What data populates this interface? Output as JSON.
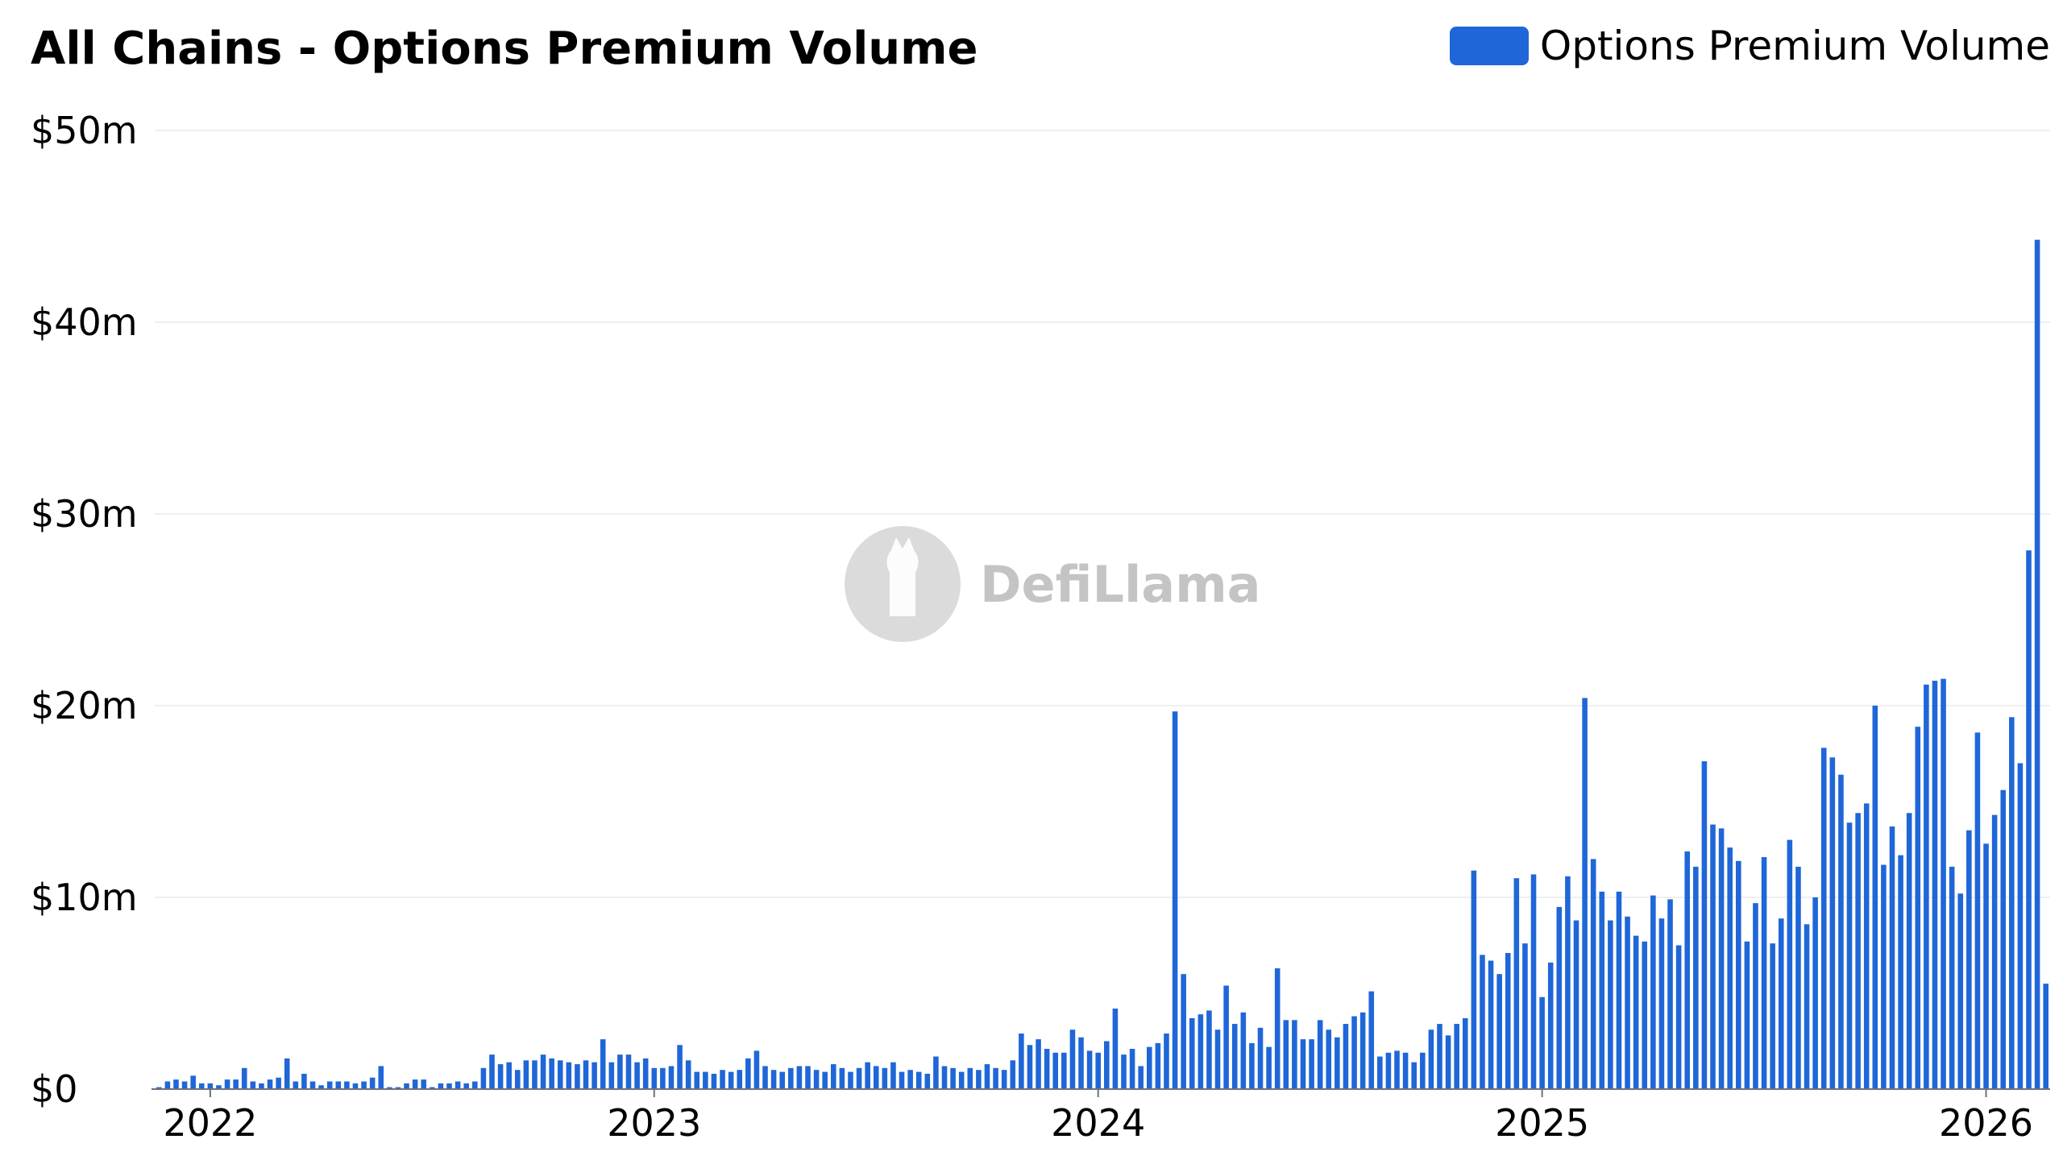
{
  "chart_data": {
    "type": "bar",
    "title": "All Chains - Options Premium Volume",
    "legend": {
      "label": "Options Premium Volume",
      "placement": "top-right"
    },
    "series_color": "#1f66d8",
    "grid": true,
    "watermark": "DefiLlama",
    "ylim": [
      0,
      50
    ],
    "y_ticks": [
      {
        "value": 0,
        "label": "$0"
      },
      {
        "value": 10,
        "label": "$10m"
      },
      {
        "value": 20,
        "label": "$20m"
      },
      {
        "value": 30,
        "label": "$30m"
      },
      {
        "value": 40,
        "label": "$40m"
      },
      {
        "value": 50,
        "label": "$50m"
      }
    ],
    "x_ticks": [
      {
        "label": "2022",
        "index": 6
      },
      {
        "label": "2023",
        "index": 58
      },
      {
        "label": "2024",
        "index": 110
      },
      {
        "label": "2025",
        "index": 162
      },
      {
        "label": "2026",
        "index": 214
      }
    ],
    "values": [
      0.1,
      0.4,
      0.5,
      0.4,
      0.7,
      0.3,
      0.3,
      0.2,
      0.5,
      0.5,
      1.1,
      0.4,
      0.3,
      0.5,
      0.6,
      1.6,
      0.4,
      0.8,
      0.4,
      0.2,
      0.4,
      0.4,
      0.4,
      0.3,
      0.4,
      0.6,
      1.2,
      0.1,
      0.1,
      0.3,
      0.5,
      0.5,
      0.1,
      0.3,
      0.3,
      0.4,
      0.3,
      0.4,
      1.1,
      1.8,
      1.3,
      1.4,
      1.0,
      1.5,
      1.5,
      1.8,
      1.6,
      1.5,
      1.4,
      1.3,
      1.5,
      1.4,
      2.6,
      1.4,
      1.8,
      1.8,
      1.4,
      1.6,
      1.1,
      1.1,
      1.2,
      2.3,
      1.5,
      0.9,
      0.9,
      0.8,
      1.0,
      0.9,
      1.0,
      1.6,
      2.0,
      1.2,
      1.0,
      0.9,
      1.1,
      1.2,
      1.2,
      1.0,
      0.9,
      1.3,
      1.1,
      0.9,
      1.1,
      1.4,
      1.2,
      1.1,
      1.4,
      0.9,
      1.0,
      0.9,
      0.8,
      1.7,
      1.2,
      1.1,
      0.9,
      1.1,
      1.0,
      1.3,
      1.1,
      1.0,
      1.5,
      2.9,
      2.3,
      2.6,
      2.1,
      1.9,
      1.9,
      3.1,
      2.7,
      2.0,
      1.9,
      2.5,
      4.2,
      1.8,
      2.1,
      1.2,
      2.2,
      2.4,
      2.9,
      19.7,
      6.0,
      3.7,
      3.9,
      4.1,
      3.1,
      5.4,
      3.4,
      4.0,
      2.4,
      3.2,
      2.2,
      6.3,
      3.6,
      3.6,
      2.6,
      2.6,
      3.6,
      3.1,
      2.7,
      3.4,
      3.8,
      4.0,
      5.1,
      1.7,
      1.9,
      2.0,
      1.9,
      1.4,
      1.9,
      3.1,
      3.4,
      2.8,
      3.4,
      3.7,
      11.4,
      7.0,
      6.7,
      6.0,
      7.1,
      11.0,
      7.6,
      11.2,
      4.8,
      6.6,
      9.5,
      11.1,
      8.8,
      20.4,
      12.0,
      10.3,
      8.8,
      10.3,
      9.0,
      8.0,
      7.7,
      10.1,
      8.9,
      9.9,
      7.5,
      12.4,
      11.6,
      17.1,
      13.8,
      13.6,
      12.6,
      11.9,
      7.7,
      9.7,
      12.1,
      7.6,
      8.9,
      13.0,
      11.6,
      8.6,
      10.0,
      17.8,
      17.3,
      16.4,
      13.9,
      14.4,
      14.9,
      20.0,
      11.7,
      13.7,
      12.2,
      14.4,
      18.9,
      21.1,
      21.3,
      21.4,
      11.6,
      10.2,
      13.5,
      18.6,
      12.8,
      14.3,
      15.6,
      19.4,
      17.0,
      28.1,
      44.3,
      5.5
    ]
  }
}
